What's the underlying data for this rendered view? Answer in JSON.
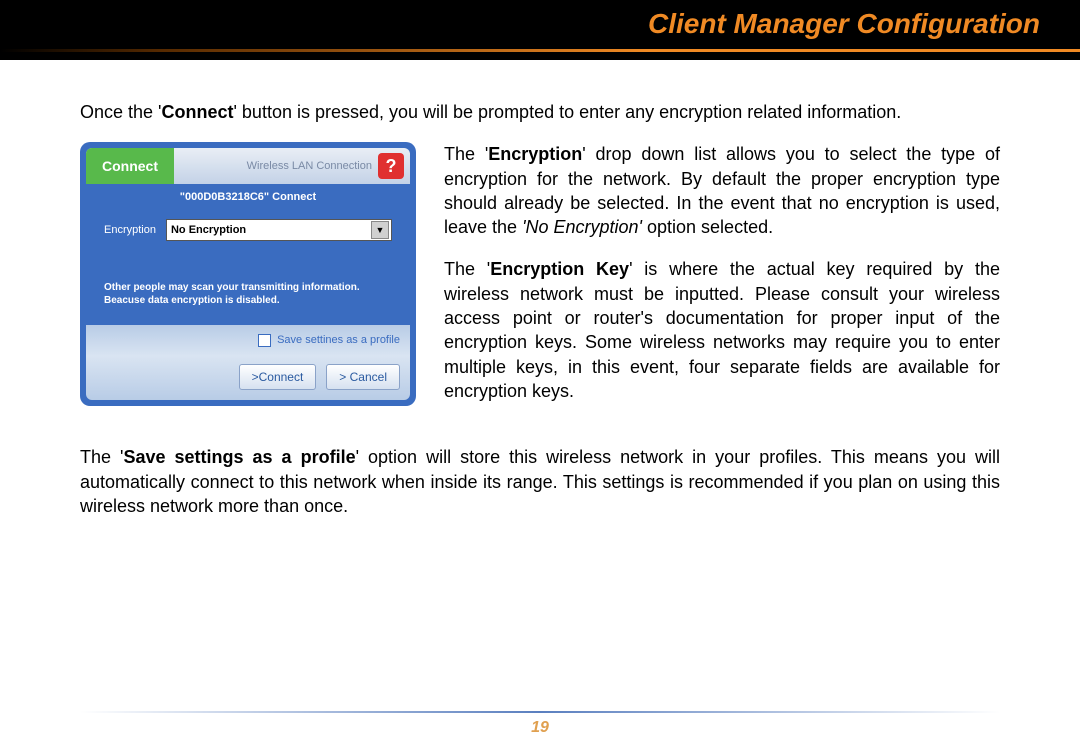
{
  "header": {
    "title": "Client Manager Configuration",
    "title_color": "#f08a24",
    "bg_color": "#000000"
  },
  "intro": {
    "pre": "Once the '",
    "bold": "Connect",
    "post": "' button is pressed, you will be prompted to enter any encryption related information."
  },
  "dialog": {
    "tab_label": "Connect",
    "header_sub": "Wireless LAN Connection",
    "help": "?",
    "ssid_line": "\"000D0B3218C6\"  Connect",
    "encryption_label": "Encryption",
    "encryption_value": "No Encryption",
    "warning_line1": "Other people may scan your transmitting information.",
    "warning_line2": "Beacuse data encryption is disabled.",
    "save_label": "Save settines as a profile",
    "btn_connect": ">Connect",
    "btn_cancel": "> Cancel",
    "bg_color": "#3a6cc0",
    "tab_color": "#58b94b",
    "help_bg": "#e03030"
  },
  "para_enc": {
    "t1": "The '",
    "b1": "Encryption",
    "t2": "' drop down list allows you to select the type of encryption for the network.  By default the proper encryption type should already be selected.  In the event that no encryption is used, leave the ",
    "i1": "'No Encryption'",
    "t3": " option selected."
  },
  "para_key": {
    "t1": "The '",
    "b1": "Encryption Key",
    "t2": "' is where the actual key required by the wireless network must be inputted.  Please consult your wireless access point or router's documentation for proper input of the encryption keys.  Some wireless networks may require you to enter multiple keys, in this event, four separate fields are available for encryption keys."
  },
  "para_save": {
    "t1": "The '",
    "b1": "Save settings as a profile",
    "t2": "' option will store this wireless network in your profiles.  This means you will automatically connect to this network when inside its range.  This settings is recommended if you plan on using this wireless network more than once."
  },
  "page_number": "19"
}
